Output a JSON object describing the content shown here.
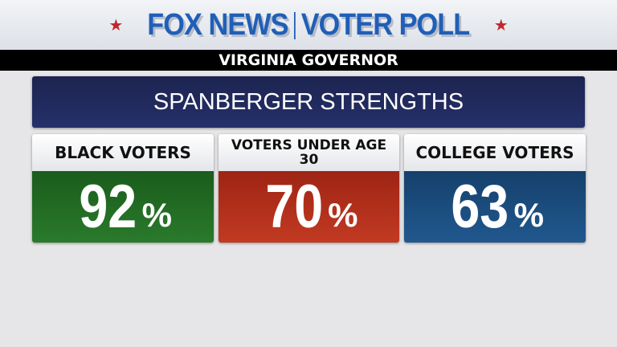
{
  "header": {
    "brand": "FOX NEWS",
    "product": "VOTER POLL"
  },
  "race": "VIRGINIA GOVERNOR",
  "title": "SPANBERGER STRENGTHS",
  "cards": [
    {
      "label": "BLACK VOTERS",
      "value": "92",
      "unit": "%",
      "color": "#1f6b22"
    },
    {
      "label": "VOTERS UNDER AGE 30",
      "value": "70",
      "unit": "%",
      "color": "#b3301c"
    },
    {
      "label": "COLLEGE VOTERS",
      "value": "63",
      "unit": "%",
      "color": "#1b4e80"
    }
  ]
}
